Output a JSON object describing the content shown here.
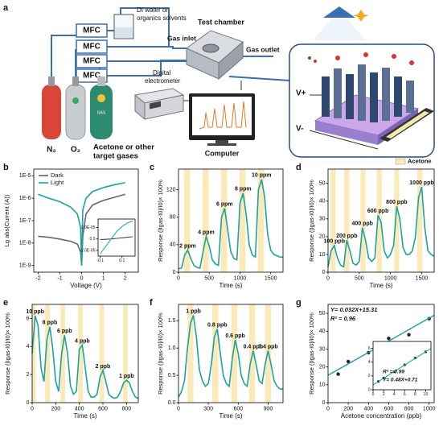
{
  "diagram": {
    "panel": "a",
    "mfc": [
      "MFC",
      "MFC",
      "MFC",
      "MFC"
    ],
    "solvent": [
      "DI water or",
      "organics solvents"
    ],
    "chamber": "Test chamber",
    "inlet": "Gas inlet",
    "outlet": "Gas outlet",
    "electrometer": [
      "Digital",
      "electrometer"
    ],
    "computer": "Computer",
    "gases": [
      "N₂",
      "O₂"
    ],
    "target": [
      "Acetone or other",
      "target gases"
    ],
    "cylinder_tag": "GAS",
    "electrodes": [
      "V+",
      "V-"
    ]
  },
  "chart_data": [
    {
      "type": "line",
      "panel": "b",
      "ylog": true,
      "xlabel": "Voltage (V)",
      "ylabel": "Lg abs(Current (A))",
      "x": [
        -2,
        -1.5,
        -1,
        -0.5,
        -0.2,
        -0.05,
        0,
        0.05,
        0.2,
        0.5,
        1,
        1.5,
        2
      ],
      "series": [
        {
          "name": "Dark",
          "color": "#666666",
          "values": [
            2e-08,
            1.8e-08,
            1.5e-08,
            1.2e-08,
            9e-09,
            4e-09,
            1e-09,
            2e-08,
            2e-07,
            5e-07,
            8e-07,
            1.1e-06,
            1.5e-06
          ]
        },
        {
          "name": "Light",
          "color": "#1aa3a3",
          "values": [
            1.5e-06,
            1e-06,
            7e-07,
            4e-07,
            2e-07,
            5e-08,
            1e-09,
            3e-07,
            1e-06,
            2e-06,
            3e-06,
            4e-06,
            5e-06
          ]
        }
      ],
      "xlim": [
        -2.2,
        2.6
      ],
      "xticks": [
        -2,
        -1,
        0,
        1,
        2
      ],
      "ylim": [
        5e-10,
        2e-05
      ],
      "yticks": [
        {
          "value": 1e-09,
          "label": "1E-9"
        },
        {
          "value": 1e-08,
          "label": "1E-8"
        },
        {
          "value": 1e-07,
          "label": "1E-7"
        },
        {
          "value": 1e-06,
          "label": "1E-6"
        },
        {
          "value": 1e-05,
          "label": "1E-5"
        }
      ],
      "legend": "upper left",
      "inset": {
        "type": "line",
        "x": [
          -0.1,
          -0.05,
          0,
          0.05,
          0.1,
          0.15,
          0.2
        ],
        "series": [
          {
            "color": "#333333",
            "values": [
              -1e-06,
              -5e-07,
              0,
              1e-06,
              2e-06,
              3e-06,
              4e-06
            ]
          },
          {
            "color": "#1aa3a3",
            "values": [
              -2.6e-05,
              -1.3e-05,
              0,
              1.3e-05,
              2.2e-05,
              2.8e-05,
              3.2e-05
            ]
          }
        ],
        "xlim": [
          -0.12,
          0.22
        ],
        "xticks": [
          -0.1,
          0.1
        ],
        "ylim": [
          -3e-05,
          3.5e-05
        ],
        "yticks": [
          {
            "value": 2e-05,
            "label": "2.0E-05"
          },
          {
            "value": 0,
            "label": "0.0"
          },
          {
            "value": -2e-05,
            "label": "-2.0E-05"
          }
        ]
      }
    },
    {
      "type": "line",
      "panel": "c",
      "xlabel": "Time (s)",
      "ylabel": "Response (|Igas-I0|/I0)× 100%",
      "x": [
        0,
        50,
        100,
        150,
        200,
        250,
        300,
        350,
        400,
        450,
        500,
        550,
        600,
        650,
        700,
        750,
        800,
        850,
        900,
        950,
        1000,
        1050,
        1100,
        1150,
        1200,
        1250,
        1300,
        1350,
        1400,
        1450,
        1500,
        1550,
        1600,
        1650,
        1700
      ],
      "series": [
        {
          "color": "#1aa3a3",
          "values": [
            5,
            6,
            25,
            32,
            20,
            10,
            7,
            6,
            30,
            52,
            38,
            18,
            12,
            10,
            80,
            93,
            62,
            30,
            20,
            18,
            100,
            115,
            85,
            40,
            25,
            22,
            120,
            135,
            110,
            55,
            32,
            26,
            24,
            22,
            22
          ]
        }
      ],
      "bands": [
        [
          90,
          190
        ],
        [
          390,
          490
        ],
        [
          690,
          790
        ],
        [
          990,
          1090
        ],
        [
          1290,
          1390
        ]
      ],
      "band_color": "#fbe9b7",
      "peak_labels": [
        "2 ppm",
        "4 ppm",
        "6 ppm",
        "8 ppm",
        "10 ppm"
      ],
      "xlim": [
        0,
        1700
      ],
      "xticks": [
        0,
        500,
        1000,
        1500
      ],
      "ylim": [
        0,
        150
      ],
      "yticks": [
        0,
        40,
        80,
        120
      ]
    },
    {
      "type": "line",
      "panel": "d",
      "xlabel": "Time (s)",
      "ylabel": "Response (|Igas-I0|/I0)× 100%",
      "x": [
        0,
        50,
        100,
        150,
        200,
        250,
        300,
        350,
        400,
        450,
        500,
        550,
        600,
        650,
        700,
        750,
        800,
        850,
        900,
        950,
        1000,
        1050,
        1100,
        1150,
        1200,
        1250,
        1300,
        1350,
        1400,
        1450,
        1500,
        1550,
        1600,
        1650,
        1700
      ],
      "series": [
        {
          "color": "#1aa3a3",
          "values": [
            3,
            12,
            15,
            8,
            4,
            3,
            18,
            12,
            5,
            4,
            6,
            25,
            18,
            8,
            6,
            8,
            32,
            28,
            12,
            8,
            10,
            15,
            37,
            30,
            14,
            10,
            10,
            12,
            20,
            42,
            48,
            25,
            12,
            10,
            9
          ]
        }
      ],
      "bands": [
        [
          40,
          120
        ],
        [
          260,
          340
        ],
        [
          520,
          600
        ],
        [
          780,
          860
        ],
        [
          1060,
          1140
        ],
        [
          1430,
          1510
        ]
      ],
      "band_color": "#fbe9b7",
      "band_legend": "Acetone",
      "peak_labels": [
        "100 ppb",
        "200 ppb",
        "400 ppb",
        "600 ppb",
        "800 ppb",
        "1000 ppb"
      ],
      "xlim": [
        0,
        1700
      ],
      "xticks": [
        0,
        500,
        1000,
        1500
      ],
      "ylim": [
        0,
        58
      ],
      "yticks": [
        0,
        10,
        20,
        30,
        40,
        50
      ]
    },
    {
      "type": "line",
      "panel": "e",
      "xlabel": "Time (s)",
      "ylabel": "Response (|Igas-I0|/I0)× 100%",
      "x": [
        0,
        25,
        50,
        75,
        100,
        125,
        150,
        175,
        200,
        225,
        250,
        275,
        300,
        325,
        350,
        375,
        400,
        425,
        450,
        475,
        500,
        525,
        550,
        575,
        600,
        625,
        650,
        675,
        700,
        725,
        750,
        775,
        800,
        825,
        850,
        875,
        900
      ],
      "series": [
        {
          "color": "#1aa3a3",
          "values": [
            3.5,
            6.2,
            5.5,
            2.5,
            1.5,
            4.5,
            5.4,
            3.8,
            1.5,
            0.8,
            3.5,
            4.8,
            3.5,
            1.2,
            0.6,
            0.8,
            3.8,
            4.1,
            2.5,
            0.8,
            0.4,
            0.4,
            0.6,
            1.8,
            2.3,
            1.5,
            0.6,
            0.4,
            0.3,
            0.4,
            0.8,
            1.4,
            1.6,
            1.4,
            0.8,
            0.4,
            0.3
          ]
        }
      ],
      "bands": [
        [
          0,
          30
        ],
        [
          110,
          150
        ],
        [
          240,
          280
        ],
        [
          390,
          430
        ],
        [
          570,
          610
        ],
        [
          770,
          810
        ]
      ],
      "band_color": "#fbe9b7",
      "peak_labels": [
        "10 ppb",
        "8 ppb",
        "6 ppb",
        "4 ppb",
        "2 ppb",
        "1 ppb"
      ],
      "xlim": [
        0,
        900
      ],
      "xticks": [
        0,
        200,
        400,
        600,
        800
      ],
      "ylim": [
        0,
        7
      ],
      "yticks": [
        0,
        2,
        4,
        6
      ]
    },
    {
      "type": "line",
      "panel": "f",
      "xlabel": "Time (s)",
      "ylabel": "Response (|Igas-I0|/I0)× 100%",
      "x": [
        0,
        30,
        60,
        90,
        120,
        150,
        180,
        210,
        240,
        270,
        300,
        330,
        360,
        390,
        420,
        450,
        480,
        510,
        540,
        570,
        600,
        630,
        660,
        690,
        720,
        750,
        780,
        810,
        840,
        870,
        900,
        930,
        960,
        990,
        1020,
        1050
      ],
      "series": [
        {
          "color": "#1aa3a3",
          "values": [
            0.1,
            0.2,
            0.4,
            1.0,
            1.45,
            1.6,
            1.2,
            0.6,
            0.4,
            0.3,
            0.35,
            0.7,
            1.2,
            1.35,
            0.9,
            0.5,
            0.35,
            0.3,
            0.8,
            1.15,
            0.9,
            0.5,
            0.35,
            0.3,
            0.7,
            0.95,
            0.7,
            0.4,
            0.35,
            0.7,
            0.95,
            0.7,
            0.4,
            0.3,
            0.25,
            0.25
          ]
        }
      ],
      "bands": [
        [
          90,
          150
        ],
        [
          340,
          400
        ],
        [
          530,
          590
        ],
        [
          710,
          770
        ],
        [
          870,
          930
        ]
      ],
      "band_color": "#fbe9b7",
      "peak_labels": [
        "1 ppb",
        "0.8 ppb",
        "0.6 ppb",
        "0.4 ppb",
        "0.4 ppb"
      ],
      "xlim": [
        0,
        1050
      ],
      "xticks": [
        0,
        300,
        600,
        900
      ],
      "ylim": [
        0,
        1.8
      ],
      "yticks": [
        {
          "value": 0,
          "label": "0.0"
        },
        0.5,
        {
          "value": 1,
          "label": "1.0"
        },
        1.5
      ]
    },
    {
      "type": "scatter",
      "panel": "g",
      "xlabel": "Acetone concentration (ppb)",
      "ylabel": "Response (|Igas-I0|/I0)× 100%",
      "x": [
        100,
        200,
        400,
        600,
        800,
        1000
      ],
      "series": [
        {
          "color": "#222222",
          "values": [
            16,
            23,
            28,
            36,
            38,
            47
          ]
        }
      ],
      "fit": {
        "slope": 0.032,
        "intercept": 15.31,
        "color": "#1aa3a3"
      },
      "annotations": [
        "Y= 0.032X+15.31",
        "R² = 0.96"
      ],
      "xlim": [
        0,
        1050
      ],
      "xticks": [
        0,
        200,
        400,
        600,
        800,
        1000
      ],
      "ylim": [
        0,
        55
      ],
      "yticks": [
        0,
        10,
        20,
        30,
        40,
        50
      ],
      "inset": {
        "type": "scatter",
        "x": [
          1,
          2,
          4,
          6,
          8,
          10
        ],
        "series": [
          {
            "color": "#222222",
            "values": [
              1.2,
              1.7,
              2.6,
              3.6,
              4.6,
              5.5
            ]
          }
        ],
        "fit": {
          "slope": 0.48,
          "intercept": 0.71,
          "color": "#1aa3a3"
        },
        "annotations": [
          "R² = 0.99",
          "Y= 0.48X+0.71"
        ],
        "xlim": [
          0,
          11
        ],
        "xticks": [
          0,
          2,
          4,
          6,
          8,
          10
        ],
        "ylim": [
          0,
          7
        ],
        "yticks": [
          0,
          2,
          4,
          6
        ]
      }
    }
  ]
}
